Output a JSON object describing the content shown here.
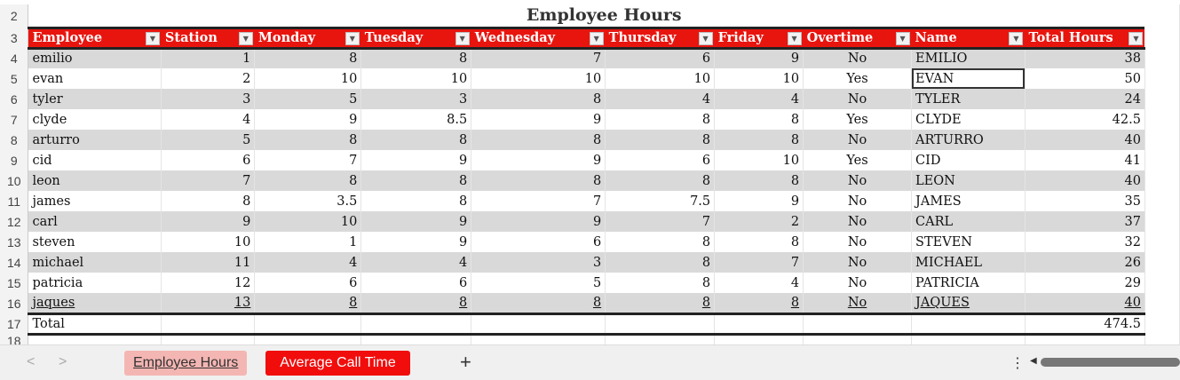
{
  "sheet": {
    "title": "Employee Hours",
    "row_numbers": [
      "2",
      "3",
      "4",
      "5",
      "6",
      "7",
      "8",
      "9",
      "10",
      "11",
      "12",
      "13",
      "14",
      "15",
      "16",
      "17",
      "18"
    ],
    "headers": [
      "Employee",
      "Station",
      "Monday",
      "Tuesday",
      "Wednesday",
      "Thursday",
      "Friday",
      "Overtime",
      "Name",
      "Total Hours"
    ],
    "rows": [
      [
        "emilio",
        "1",
        "8",
        "8",
        "7",
        "6",
        "9",
        "No",
        "EMILIO",
        "38"
      ],
      [
        "evan",
        "2",
        "10",
        "10",
        "10",
        "10",
        "10",
        "Yes",
        "EVAN",
        "50"
      ],
      [
        "tyler",
        "3",
        "5",
        "3",
        "8",
        "4",
        "4",
        "No",
        "TYLER",
        "24"
      ],
      [
        "clyde",
        "4",
        "9",
        "8.5",
        "9",
        "8",
        "8",
        "Yes",
        "CLYDE",
        "42.5"
      ],
      [
        "arturro",
        "5",
        "8",
        "8",
        "8",
        "8",
        "8",
        "No",
        "ARTURRO",
        "40"
      ],
      [
        "cid",
        "6",
        "7",
        "9",
        "9",
        "6",
        "10",
        "Yes",
        "CID",
        "41"
      ],
      [
        "leon",
        "7",
        "8",
        "8",
        "8",
        "8",
        "8",
        "No",
        "LEON",
        "40"
      ],
      [
        "james",
        "8",
        "3.5",
        "8",
        "7",
        "7.5",
        "9",
        "No",
        "JAMES",
        "35"
      ],
      [
        "carl",
        "9",
        "10",
        "9",
        "9",
        "7",
        "2",
        "No",
        "CARL",
        "37"
      ],
      [
        "steven",
        "10",
        "1",
        "9",
        "6",
        "8",
        "8",
        "No",
        "STEVEN",
        "32"
      ],
      [
        "michael",
        "11",
        "4",
        "4",
        "3",
        "8",
        "7",
        "No",
        "MICHAEL",
        "26"
      ],
      [
        "patricia",
        "12",
        "6",
        "6",
        "5",
        "8",
        "4",
        "No",
        "PATRICIA",
        "29"
      ],
      [
        "jaques",
        "13",
        "8",
        "8",
        "8",
        "8",
        "8",
        "No",
        "JAQUES",
        "40"
      ]
    ],
    "total_label": "Total",
    "total_value": "474.5",
    "selected_cell": "EVAN",
    "header_color": "#e8150f"
  },
  "tabs": {
    "items": [
      "Employee Hours",
      "Average Call Time"
    ],
    "active": "Average Call Time",
    "add": "+",
    "more": "⋮",
    "prev": "<",
    "next": ">"
  }
}
